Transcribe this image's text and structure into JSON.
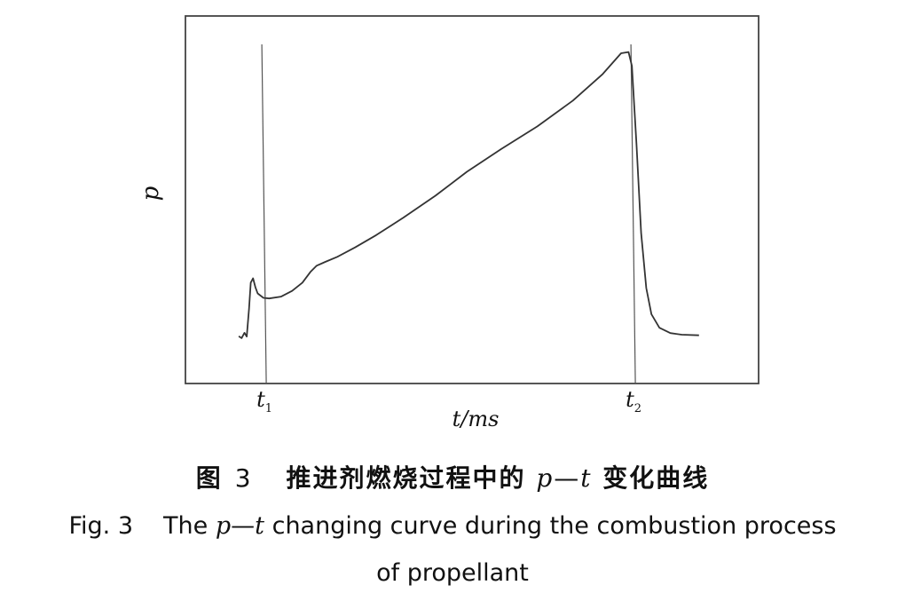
{
  "chart_data": {
    "type": "line",
    "title": "",
    "xlabel": "t/ms",
    "ylabel": "p",
    "grid": false,
    "legend": "none",
    "xlim": [
      0,
      100
    ],
    "ylim": [
      0,
      100
    ],
    "markers": [
      {
        "label": "t",
        "subscript": "1",
        "x": 14.1
      },
      {
        "label": "t",
        "subscript": "2",
        "x": 78.5
      }
    ],
    "series": [
      {
        "color": "#333333",
        "x": [
          9.3,
          9.8,
          10.3,
          10.7,
          11.1,
          11.4,
          11.8,
          12.2,
          12.6,
          13.1,
          13.6,
          14.6,
          16.7,
          18.6,
          20.4,
          21.8,
          22.9,
          24.4,
          26.5,
          29.6,
          33.3,
          38.0,
          43.6,
          49.1,
          55.1,
          61.4,
          67.6,
          72.8,
          76.0,
          77.3,
          77.9,
          78.7,
          79.5,
          80.4,
          81.3,
          82.7,
          84.6,
          86.6,
          89.6
        ],
        "y": [
          10.2,
          9.6,
          11.3,
          10.1,
          19.0,
          27.2,
          28.6,
          25.8,
          23.8,
          23.1,
          22.4,
          22.2,
          22.8,
          24.6,
          27.2,
          30.6,
          32.6,
          33.8,
          35.4,
          38.4,
          42.3,
          47.8,
          54.8,
          62.4,
          69.6,
          76.8,
          85.0,
          93.4,
          100.0,
          100.4,
          96.0,
          71.0,
          43.0,
          25.5,
          17.2,
          12.9,
          11.2,
          10.7,
          10.5
        ]
      }
    ]
  },
  "caption_cn": {
    "prefix": "图",
    "number": "3",
    "text_a": "推进剂燃烧过程中的",
    "p": "p",
    "dash": "—",
    "t": "t",
    "text_b": "变化曲线"
  },
  "caption_en": {
    "prefix": "Fig. 3",
    "text_a": "The",
    "p": "p",
    "dash": "—",
    "t": "t",
    "text_b": "changing curve during the combustion process",
    "line2": "of propellant"
  }
}
